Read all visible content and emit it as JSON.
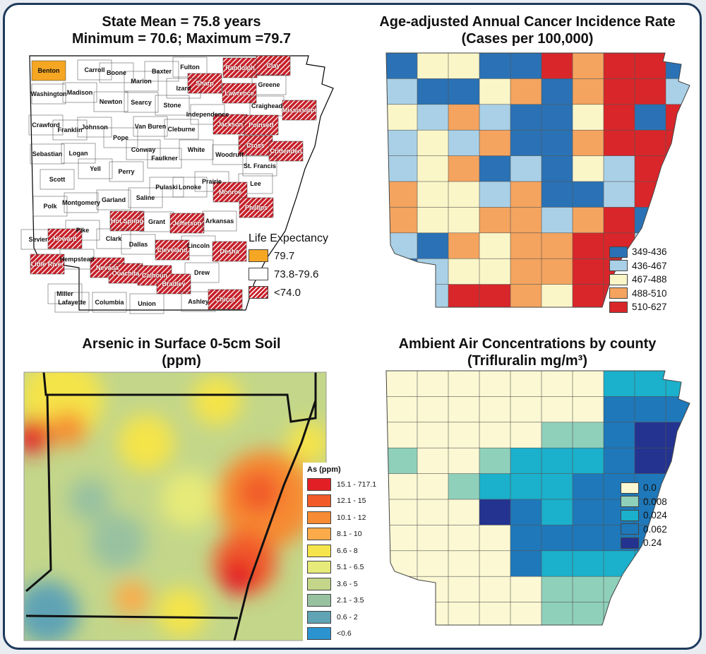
{
  "panels": {
    "life": {
      "title1": "State Mean = 75.8 years",
      "title2": "Minimum = 70.6; Maximum =79.7",
      "legend_title": "Life Expectancy",
      "legend": [
        {
          "label": "79.7",
          "color": "#f5a623"
        },
        {
          "label": "73.8-79.6",
          "color": "#ffffff"
        },
        {
          "label": "<74.0",
          "color": "#c8202a"
        }
      ],
      "counties": [
        {
          "name": "Benton",
          "c": "o"
        },
        {
          "name": "Carroll",
          "c": "w"
        },
        {
          "name": "Boone",
          "c": "w"
        },
        {
          "name": "Baxter",
          "c": "w"
        },
        {
          "name": "Fulton",
          "c": "w"
        },
        {
          "name": "Randolph",
          "c": "h"
        },
        {
          "name": "Clay",
          "c": "h"
        },
        {
          "name": "Marion",
          "c": "w"
        },
        {
          "name": "Sharp",
          "c": "h"
        },
        {
          "name": "Izard",
          "c": "w"
        },
        {
          "name": "Greene",
          "c": "w"
        },
        {
          "name": "Lawrence",
          "c": "h"
        },
        {
          "name": "Washington",
          "c": "w"
        },
        {
          "name": "Madison",
          "c": "w"
        },
        {
          "name": "Newton",
          "c": "w"
        },
        {
          "name": "Searcy",
          "c": "w"
        },
        {
          "name": "Stone",
          "c": "w"
        },
        {
          "name": "Craighead",
          "c": "w"
        },
        {
          "name": "Mississippi",
          "c": "h"
        },
        {
          "name": "Independence",
          "c": "w"
        },
        {
          "name": "Crawford",
          "c": "w"
        },
        {
          "name": "Franklin",
          "c": "w"
        },
        {
          "name": "Johnson",
          "c": "w"
        },
        {
          "name": "Van Buren",
          "c": "w"
        },
        {
          "name": "Cleburne",
          "c": "w"
        },
        {
          "name": "Jackson",
          "c": "h"
        },
        {
          "name": "Poinsett",
          "c": "h"
        },
        {
          "name": "Pope",
          "c": "w"
        },
        {
          "name": "Conway",
          "c": "w"
        },
        {
          "name": "White",
          "c": "w"
        },
        {
          "name": "Cross",
          "c": "h"
        },
        {
          "name": "Crittenden",
          "c": "h"
        },
        {
          "name": "Sebastian",
          "c": "w"
        },
        {
          "name": "Logan",
          "c": "w"
        },
        {
          "name": "Faulkner",
          "c": "w"
        },
        {
          "name": "Woodruff",
          "c": "w"
        },
        {
          "name": "St. Francis",
          "c": "w"
        },
        {
          "name": "Yell",
          "c": "w"
        },
        {
          "name": "Perry",
          "c": "w"
        },
        {
          "name": "Scott",
          "c": "w"
        },
        {
          "name": "Prairie",
          "c": "w"
        },
        {
          "name": "Pulaski",
          "c": "w"
        },
        {
          "name": "Lonoke",
          "c": "w"
        },
        {
          "name": "Lee",
          "c": "w"
        },
        {
          "name": "Monroe",
          "c": "h"
        },
        {
          "name": "Garland",
          "c": "w"
        },
        {
          "name": "Saline",
          "c": "w"
        },
        {
          "name": "Montgomery",
          "c": "w"
        },
        {
          "name": "Polk",
          "c": "w"
        },
        {
          "name": "Phillips",
          "c": "h"
        },
        {
          "name": "Hot Spring",
          "c": "h"
        },
        {
          "name": "Grant",
          "c": "w"
        },
        {
          "name": "Jefferson",
          "c": "h"
        },
        {
          "name": "Arkansas",
          "c": "w"
        },
        {
          "name": "Pike",
          "c": "w"
        },
        {
          "name": "Sevier",
          "c": "w"
        },
        {
          "name": "Howard",
          "c": "h"
        },
        {
          "name": "Clark",
          "c": "w"
        },
        {
          "name": "Dallas",
          "c": "w"
        },
        {
          "name": "Lincoln",
          "c": "w"
        },
        {
          "name": "Cleveland",
          "c": "h"
        },
        {
          "name": "Desha",
          "c": "h"
        },
        {
          "name": "Hempstead",
          "c": "w"
        },
        {
          "name": "Little River",
          "c": "h"
        },
        {
          "name": "Nevada",
          "c": "h"
        },
        {
          "name": "Drew",
          "c": "w"
        },
        {
          "name": "Ouachita",
          "c": "h"
        },
        {
          "name": "Calhoun",
          "c": "h"
        },
        {
          "name": "Bradley",
          "c": "h"
        },
        {
          "name": "Miller",
          "c": "w"
        },
        {
          "name": "Lafayette",
          "c": "w"
        },
        {
          "name": "Columbia",
          "c": "w"
        },
        {
          "name": "Union",
          "c": "w"
        },
        {
          "name": "Ashley",
          "c": "w"
        },
        {
          "name": "Chicot",
          "c": "h"
        }
      ]
    },
    "cancer": {
      "title1": "Age-adjusted Annual Cancer Incidence Rate",
      "title2": "(Cases per 100,000)",
      "legend": [
        {
          "label": "349-436",
          "color": "#2a72b5"
        },
        {
          "label": "436-467",
          "color": "#a9d0e6"
        },
        {
          "label": "467-488",
          "color": "#fbf6c8"
        },
        {
          "label": "488-510",
          "color": "#f4a45f"
        },
        {
          "label": "510-627",
          "color": "#d9262a"
        }
      ]
    },
    "arsenic": {
      "title1": "Arsenic in Surface 0-5cm Soil",
      "title2": "(ppm)",
      "legend_title": "As (ppm)",
      "legend": [
        {
          "label": "15.1 - 717.1",
          "color": "#e31f26"
        },
        {
          "label": "12.1 - 15",
          "color": "#f15a29"
        },
        {
          "label": "10.1 - 12",
          "color": "#f68b33"
        },
        {
          "label": "8.1 - 10",
          "color": "#fbab4a"
        },
        {
          "label": "6.6 - 8",
          "color": "#f5e44a"
        },
        {
          "label": "5.1 - 6.5",
          "color": "#e6ea78"
        },
        {
          "label": "3.6 - 5",
          "color": "#c3d68a"
        },
        {
          "label": "2.1 - 3.5",
          "color": "#98c1a0"
        },
        {
          "label": "0.6 - 2",
          "color": "#5fa3b5"
        },
        {
          "label": "<0.6",
          "color": "#2b93cf"
        }
      ]
    },
    "air": {
      "title1": "Ambient Air Concentrations by county",
      "title2": "(Trifluralin mg/m³)",
      "legend": [
        {
          "label": "0.0",
          "color": "#fbf8d3"
        },
        {
          "label": "0.008",
          "color": "#8fd0bb"
        },
        {
          "label": "0.024",
          "color": "#1bb0cb"
        },
        {
          "label": "0.062",
          "color": "#1e78b9"
        },
        {
          "label": "0.24",
          "color": "#23338f"
        }
      ]
    }
  }
}
